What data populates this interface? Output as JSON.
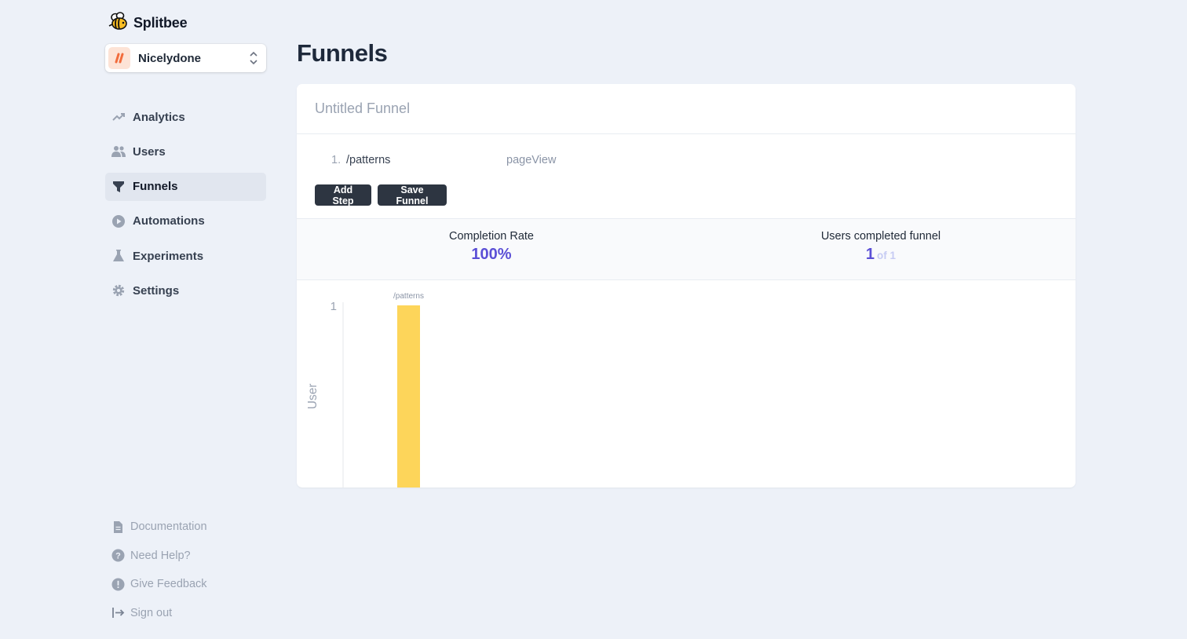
{
  "app": {
    "name": "Splitbee"
  },
  "project": {
    "name": "Nicelydone",
    "avatar_color": "#fde3d6",
    "accent": "#f26c3c"
  },
  "sidebar": {
    "items": [
      {
        "label": "Analytics",
        "icon": "trending-up-icon"
      },
      {
        "label": "Users",
        "icon": "users-icon"
      },
      {
        "label": "Funnels",
        "icon": "funnel-icon",
        "active": true
      },
      {
        "label": "Automations",
        "icon": "play-circle-icon"
      },
      {
        "label": "Experiments",
        "icon": "flask-icon"
      },
      {
        "label": "Settings",
        "icon": "gear-icon"
      }
    ],
    "bottom": [
      {
        "label": "Documentation",
        "icon": "document-icon"
      },
      {
        "label": "Need Help?",
        "icon": "question-circle-icon"
      },
      {
        "label": "Give Feedback",
        "icon": "exclamation-circle-icon"
      },
      {
        "label": "Sign out",
        "icon": "sign-out-icon"
      }
    ]
  },
  "page": {
    "title": "Funnels"
  },
  "funnel": {
    "name": "Untitled Funnel",
    "steps": [
      {
        "number": "1.",
        "path": "/patterns",
        "type": "pageView"
      }
    ],
    "add_step_label": "Add Step",
    "save_label": "Save Funnel"
  },
  "stats": {
    "completion": {
      "label": "Completion Rate",
      "value": "100%"
    },
    "users": {
      "label": "Users completed funnel",
      "value": "1",
      "of": "of 1"
    }
  },
  "colors": {
    "bar": "#fdd55a",
    "stat_value": "#5b4fd6"
  },
  "chart_data": {
    "type": "bar",
    "categories": [
      "/patterns"
    ],
    "values": [
      1
    ],
    "ylabel": "User",
    "yticks": [
      1
    ],
    "ylim": [
      0,
      1
    ]
  }
}
